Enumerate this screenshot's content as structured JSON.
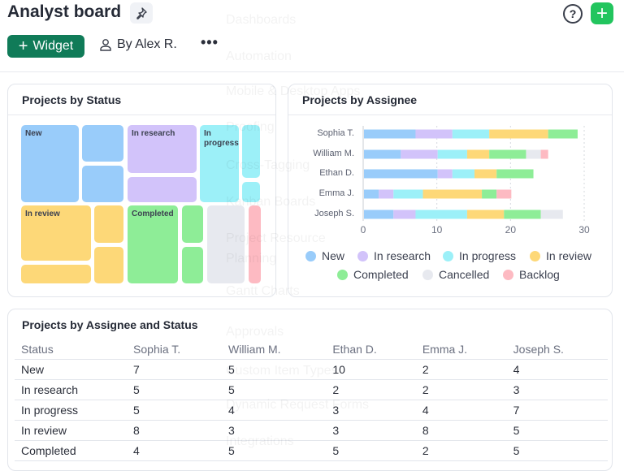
{
  "header": {
    "title": "Analyst board",
    "pin_icon": "pin-icon",
    "help_icon": "question-circle-icon",
    "add_icon": "plus-icon",
    "widget_label": "Widget",
    "owner_label": "By Alex R.",
    "more_label": "•••"
  },
  "colors": {
    "New": "#99ccfa",
    "In research": "#d2c3fa",
    "In progress": "#9cf0f8",
    "In review": "#fdd878",
    "Completed": "#8eed97",
    "Cancelled": "#e7e9ef",
    "Backlog": "#fdbac2",
    "accent": "#107b58",
    "add": "#22c55e"
  },
  "treemap": {
    "title": "Projects by Status",
    "labels": {
      "new": "New",
      "research": "In research",
      "progress": "In progress",
      "review": "In review",
      "completed": "Completed"
    }
  },
  "chart_data": {
    "type": "bar",
    "orientation": "horizontal",
    "stacked": true,
    "title": "Projects by Assignee",
    "categories": [
      "Sophia T.",
      "William M.",
      "Ethan D.",
      "Emma J.",
      "Joseph S."
    ],
    "xlim": [
      0,
      30
    ],
    "xticks": [
      0,
      10,
      20,
      30
    ],
    "grid": true,
    "legend": "bottom",
    "series": [
      {
        "name": "New",
        "values": [
          7,
          5,
          10,
          2,
          4
        ]
      },
      {
        "name": "In research",
        "values": [
          5,
          5,
          2,
          2,
          3
        ]
      },
      {
        "name": "In progress",
        "values": [
          5,
          4,
          3,
          4,
          7
        ]
      },
      {
        "name": "In review",
        "values": [
          8,
          3,
          3,
          8,
          5
        ]
      },
      {
        "name": "Completed",
        "values": [
          4,
          5,
          5,
          2,
          5
        ]
      },
      {
        "name": "Cancelled",
        "values": [
          0,
          2,
          0,
          0,
          3
        ]
      },
      {
        "name": "Backlog",
        "values": [
          0,
          1,
          0,
          2,
          0
        ]
      }
    ]
  },
  "table": {
    "title": "Projects by Assignee and Status",
    "headers": [
      "Status",
      "Sophia T.",
      "William M.",
      "Ethan D.",
      "Emma J.",
      "Joseph S."
    ],
    "rows": [
      [
        "New",
        "7",
        "5",
        "10",
        "2",
        "4"
      ],
      [
        "In research",
        "5",
        "5",
        "2",
        "2",
        "3"
      ],
      [
        "In progress",
        "5",
        "4",
        "3",
        "4",
        "7"
      ],
      [
        "In review",
        "8",
        "3",
        "3",
        "8",
        "5"
      ],
      [
        "Completed",
        "4",
        "5",
        "5",
        "2",
        "5"
      ]
    ]
  },
  "overlay_menu": [
    "Dashboards",
    "Automation",
    "Mobile & Desktop Apps",
    "Proofing",
    "Cross-Tagging",
    "Kanban Boards",
    "Project Resource",
    "Planning",
    "Gantt Charts",
    "Approvals",
    "Custom Item Types",
    "Dynamic Request Forms",
    "Integrations"
  ]
}
